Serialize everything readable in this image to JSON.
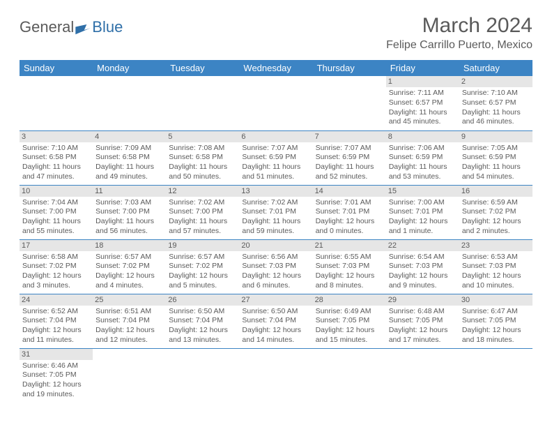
{
  "brand": {
    "word1": "General",
    "word2": "Blue"
  },
  "title": "March 2024",
  "location": "Felipe Carrillo Puerto, Mexico",
  "colors": {
    "header_bg": "#3c84c4",
    "header_fg": "#ffffff",
    "daynum_bg": "#e6e6e6",
    "text": "#5a5a5a",
    "rule": "#3c84c4"
  },
  "weekdays": [
    "Sunday",
    "Monday",
    "Tuesday",
    "Wednesday",
    "Thursday",
    "Friday",
    "Saturday"
  ],
  "weeks": [
    [
      null,
      null,
      null,
      null,
      null,
      {
        "n": "1",
        "sr": "Sunrise: 7:11 AM",
        "ss": "Sunset: 6:57 PM",
        "d1": "Daylight: 11 hours",
        "d2": "and 45 minutes."
      },
      {
        "n": "2",
        "sr": "Sunrise: 7:10 AM",
        "ss": "Sunset: 6:57 PM",
        "d1": "Daylight: 11 hours",
        "d2": "and 46 minutes."
      }
    ],
    [
      {
        "n": "3",
        "sr": "Sunrise: 7:10 AM",
        "ss": "Sunset: 6:58 PM",
        "d1": "Daylight: 11 hours",
        "d2": "and 47 minutes."
      },
      {
        "n": "4",
        "sr": "Sunrise: 7:09 AM",
        "ss": "Sunset: 6:58 PM",
        "d1": "Daylight: 11 hours",
        "d2": "and 49 minutes."
      },
      {
        "n": "5",
        "sr": "Sunrise: 7:08 AM",
        "ss": "Sunset: 6:58 PM",
        "d1": "Daylight: 11 hours",
        "d2": "and 50 minutes."
      },
      {
        "n": "6",
        "sr": "Sunrise: 7:07 AM",
        "ss": "Sunset: 6:59 PM",
        "d1": "Daylight: 11 hours",
        "d2": "and 51 minutes."
      },
      {
        "n": "7",
        "sr": "Sunrise: 7:07 AM",
        "ss": "Sunset: 6:59 PM",
        "d1": "Daylight: 11 hours",
        "d2": "and 52 minutes."
      },
      {
        "n": "8",
        "sr": "Sunrise: 7:06 AM",
        "ss": "Sunset: 6:59 PM",
        "d1": "Daylight: 11 hours",
        "d2": "and 53 minutes."
      },
      {
        "n": "9",
        "sr": "Sunrise: 7:05 AM",
        "ss": "Sunset: 6:59 PM",
        "d1": "Daylight: 11 hours",
        "d2": "and 54 minutes."
      }
    ],
    [
      {
        "n": "10",
        "sr": "Sunrise: 7:04 AM",
        "ss": "Sunset: 7:00 PM",
        "d1": "Daylight: 11 hours",
        "d2": "and 55 minutes."
      },
      {
        "n": "11",
        "sr": "Sunrise: 7:03 AM",
        "ss": "Sunset: 7:00 PM",
        "d1": "Daylight: 11 hours",
        "d2": "and 56 minutes."
      },
      {
        "n": "12",
        "sr": "Sunrise: 7:02 AM",
        "ss": "Sunset: 7:00 PM",
        "d1": "Daylight: 11 hours",
        "d2": "and 57 minutes."
      },
      {
        "n": "13",
        "sr": "Sunrise: 7:02 AM",
        "ss": "Sunset: 7:01 PM",
        "d1": "Daylight: 11 hours",
        "d2": "and 59 minutes."
      },
      {
        "n": "14",
        "sr": "Sunrise: 7:01 AM",
        "ss": "Sunset: 7:01 PM",
        "d1": "Daylight: 12 hours",
        "d2": "and 0 minutes."
      },
      {
        "n": "15",
        "sr": "Sunrise: 7:00 AM",
        "ss": "Sunset: 7:01 PM",
        "d1": "Daylight: 12 hours",
        "d2": "and 1 minute."
      },
      {
        "n": "16",
        "sr": "Sunrise: 6:59 AM",
        "ss": "Sunset: 7:02 PM",
        "d1": "Daylight: 12 hours",
        "d2": "and 2 minutes."
      }
    ],
    [
      {
        "n": "17",
        "sr": "Sunrise: 6:58 AM",
        "ss": "Sunset: 7:02 PM",
        "d1": "Daylight: 12 hours",
        "d2": "and 3 minutes."
      },
      {
        "n": "18",
        "sr": "Sunrise: 6:57 AM",
        "ss": "Sunset: 7:02 PM",
        "d1": "Daylight: 12 hours",
        "d2": "and 4 minutes."
      },
      {
        "n": "19",
        "sr": "Sunrise: 6:57 AM",
        "ss": "Sunset: 7:02 PM",
        "d1": "Daylight: 12 hours",
        "d2": "and 5 minutes."
      },
      {
        "n": "20",
        "sr": "Sunrise: 6:56 AM",
        "ss": "Sunset: 7:03 PM",
        "d1": "Daylight: 12 hours",
        "d2": "and 6 minutes."
      },
      {
        "n": "21",
        "sr": "Sunrise: 6:55 AM",
        "ss": "Sunset: 7:03 PM",
        "d1": "Daylight: 12 hours",
        "d2": "and 8 minutes."
      },
      {
        "n": "22",
        "sr": "Sunrise: 6:54 AM",
        "ss": "Sunset: 7:03 PM",
        "d1": "Daylight: 12 hours",
        "d2": "and 9 minutes."
      },
      {
        "n": "23",
        "sr": "Sunrise: 6:53 AM",
        "ss": "Sunset: 7:03 PM",
        "d1": "Daylight: 12 hours",
        "d2": "and 10 minutes."
      }
    ],
    [
      {
        "n": "24",
        "sr": "Sunrise: 6:52 AM",
        "ss": "Sunset: 7:04 PM",
        "d1": "Daylight: 12 hours",
        "d2": "and 11 minutes."
      },
      {
        "n": "25",
        "sr": "Sunrise: 6:51 AM",
        "ss": "Sunset: 7:04 PM",
        "d1": "Daylight: 12 hours",
        "d2": "and 12 minutes."
      },
      {
        "n": "26",
        "sr": "Sunrise: 6:50 AM",
        "ss": "Sunset: 7:04 PM",
        "d1": "Daylight: 12 hours",
        "d2": "and 13 minutes."
      },
      {
        "n": "27",
        "sr": "Sunrise: 6:50 AM",
        "ss": "Sunset: 7:04 PM",
        "d1": "Daylight: 12 hours",
        "d2": "and 14 minutes."
      },
      {
        "n": "28",
        "sr": "Sunrise: 6:49 AM",
        "ss": "Sunset: 7:05 PM",
        "d1": "Daylight: 12 hours",
        "d2": "and 15 minutes."
      },
      {
        "n": "29",
        "sr": "Sunrise: 6:48 AM",
        "ss": "Sunset: 7:05 PM",
        "d1": "Daylight: 12 hours",
        "d2": "and 17 minutes."
      },
      {
        "n": "30",
        "sr": "Sunrise: 6:47 AM",
        "ss": "Sunset: 7:05 PM",
        "d1": "Daylight: 12 hours",
        "d2": "and 18 minutes."
      }
    ],
    [
      {
        "n": "31",
        "sr": "Sunrise: 6:46 AM",
        "ss": "Sunset: 7:05 PM",
        "d1": "Daylight: 12 hours",
        "d2": "and 19 minutes."
      },
      null,
      null,
      null,
      null,
      null,
      null
    ]
  ]
}
